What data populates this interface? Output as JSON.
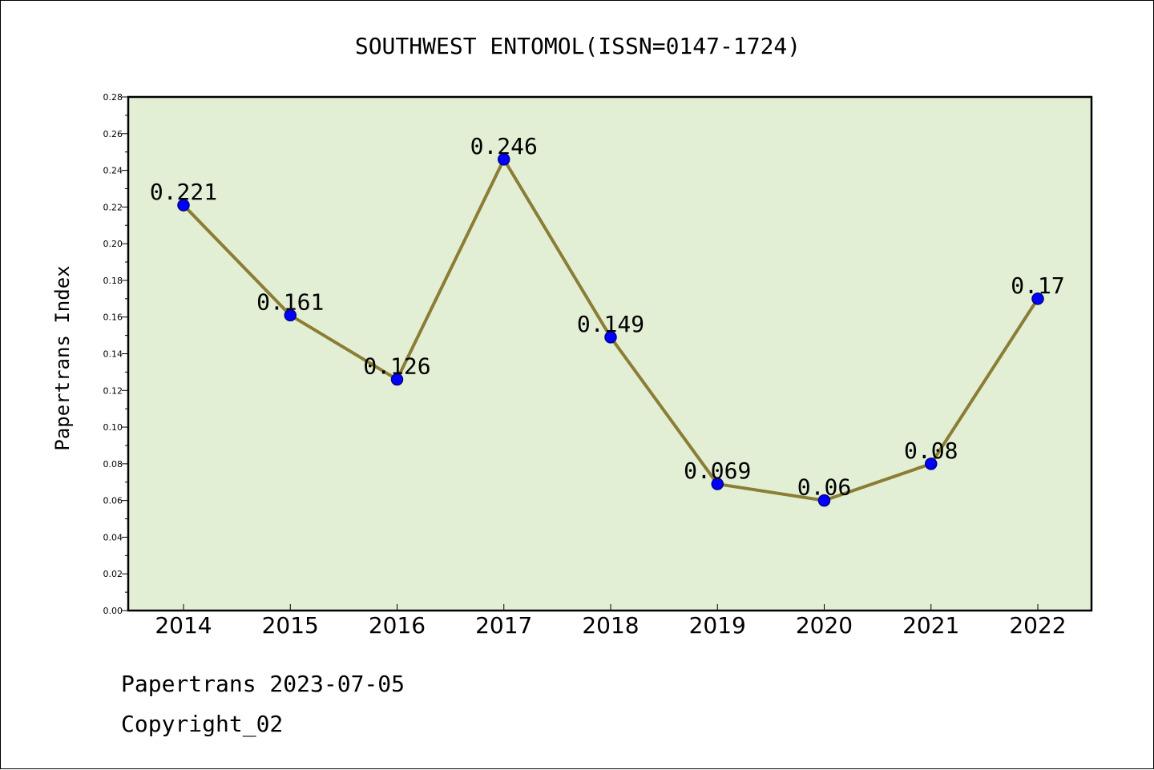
{
  "footer": {
    "line1": "Papertrans 2023-07-05",
    "line2": "Copyright_02"
  },
  "chart_data": {
    "type": "line",
    "title": "SOUTHWEST ENTOMOL(ISSN=0147-1724)",
    "xlabel": "",
    "ylabel": "Papertrans Index",
    "categories": [
      "2014",
      "2015",
      "2016",
      "2017",
      "2018",
      "2019",
      "2020",
      "2021",
      "2022"
    ],
    "values": [
      0.221,
      0.161,
      0.126,
      0.246,
      0.149,
      0.069,
      0.06,
      0.08,
      0.17
    ],
    "data_labels": [
      "0.221",
      "0.161",
      "0.126",
      "0.246",
      "0.149",
      "0.069",
      "0.06",
      "0.08",
      "0.17"
    ],
    "ylim": [
      0,
      0.28
    ],
    "yticks": [
      "0.00",
      "0.02",
      "0.04",
      "0.06",
      "0.08",
      "0.10",
      "0.12",
      "0.14",
      "0.16",
      "0.18",
      "0.20",
      "0.22",
      "0.24",
      "0.26",
      "0.28"
    ],
    "grid": false,
    "colors": {
      "plot_background": "#e2efd4",
      "line": "#8b7d35",
      "marker": "#0000ff",
      "marker_edge": "#00008b"
    }
  }
}
